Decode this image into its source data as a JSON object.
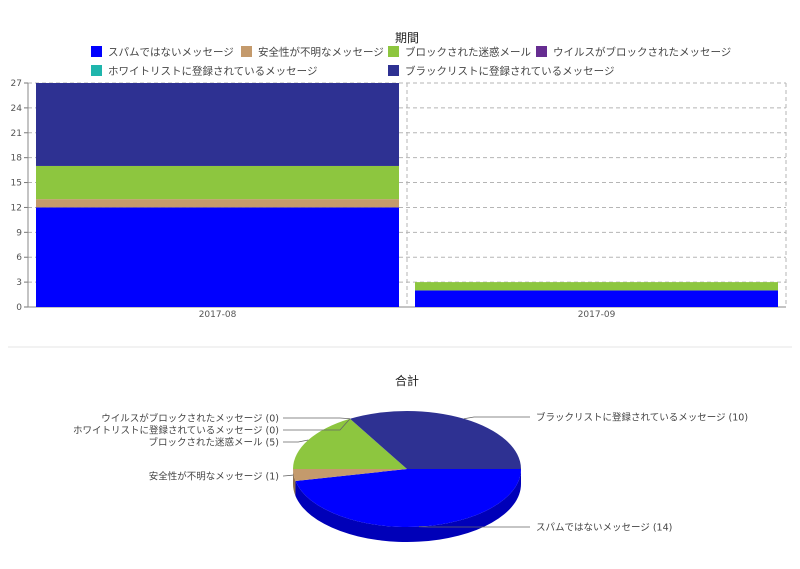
{
  "chart_data": [
    {
      "type": "bar",
      "stacked": true,
      "title": "期間",
      "categories": [
        "2017-08",
        "2017-09"
      ],
      "ylim": [
        0,
        27
      ],
      "yticks": [
        0,
        3,
        6,
        9,
        12,
        15,
        18,
        21,
        24,
        27
      ],
      "grid": true,
      "legend_position": "top",
      "series": [
        {
          "name": "スパムではないメッセージ",
          "color": "#0000ff",
          "values": [
            12,
            2
          ]
        },
        {
          "name": "安全性が不明なメッセージ",
          "color": "#c49a6c",
          "values": [
            1,
            0
          ]
        },
        {
          "name": "ブロックされた迷惑メール",
          "color": "#8dc63f",
          "values": [
            4,
            1
          ]
        },
        {
          "name": "ウイルスがブロックされたメッセージ",
          "color": "#662d91",
          "values": [
            0,
            0
          ]
        },
        {
          "name": "ホワイトリストに登録されているメッセージ",
          "color": "#1fb5ac",
          "values": [
            0,
            0
          ]
        },
        {
          "name": "ブラックリストに登録されているメッセージ",
          "color": "#2e3192",
          "values": [
            10,
            0
          ]
        }
      ]
    },
    {
      "type": "pie",
      "title": "合計",
      "slices": [
        {
          "name": "スパムではないメッセージ",
          "value": 14,
          "color": "#0000ff",
          "label": "スパムではないメッセージ (14)"
        },
        {
          "name": "安全性が不明なメッセージ",
          "value": 1,
          "color": "#c49a6c",
          "label": "安全性が不明なメッセージ (1)"
        },
        {
          "name": "ブロックされた迷惑メール",
          "value": 5,
          "color": "#8dc63f",
          "label": "ブロックされた迷惑メール (5)"
        },
        {
          "name": "ホワイトリストに登録されているメッセージ",
          "value": 0,
          "color": "#1fb5ac",
          "label": "ホワイトリストに登録されているメッセージ (0)"
        },
        {
          "name": "ウイルスがブロックされたメッセージ",
          "value": 0,
          "color": "#662d91",
          "label": "ウイルスがブロックされたメッセージ (0)"
        },
        {
          "name": "ブラックリストに登録されているメッセージ",
          "value": 10,
          "color": "#2e3192",
          "label": "ブラックリストに登録されているメッセージ (10)"
        }
      ]
    }
  ]
}
